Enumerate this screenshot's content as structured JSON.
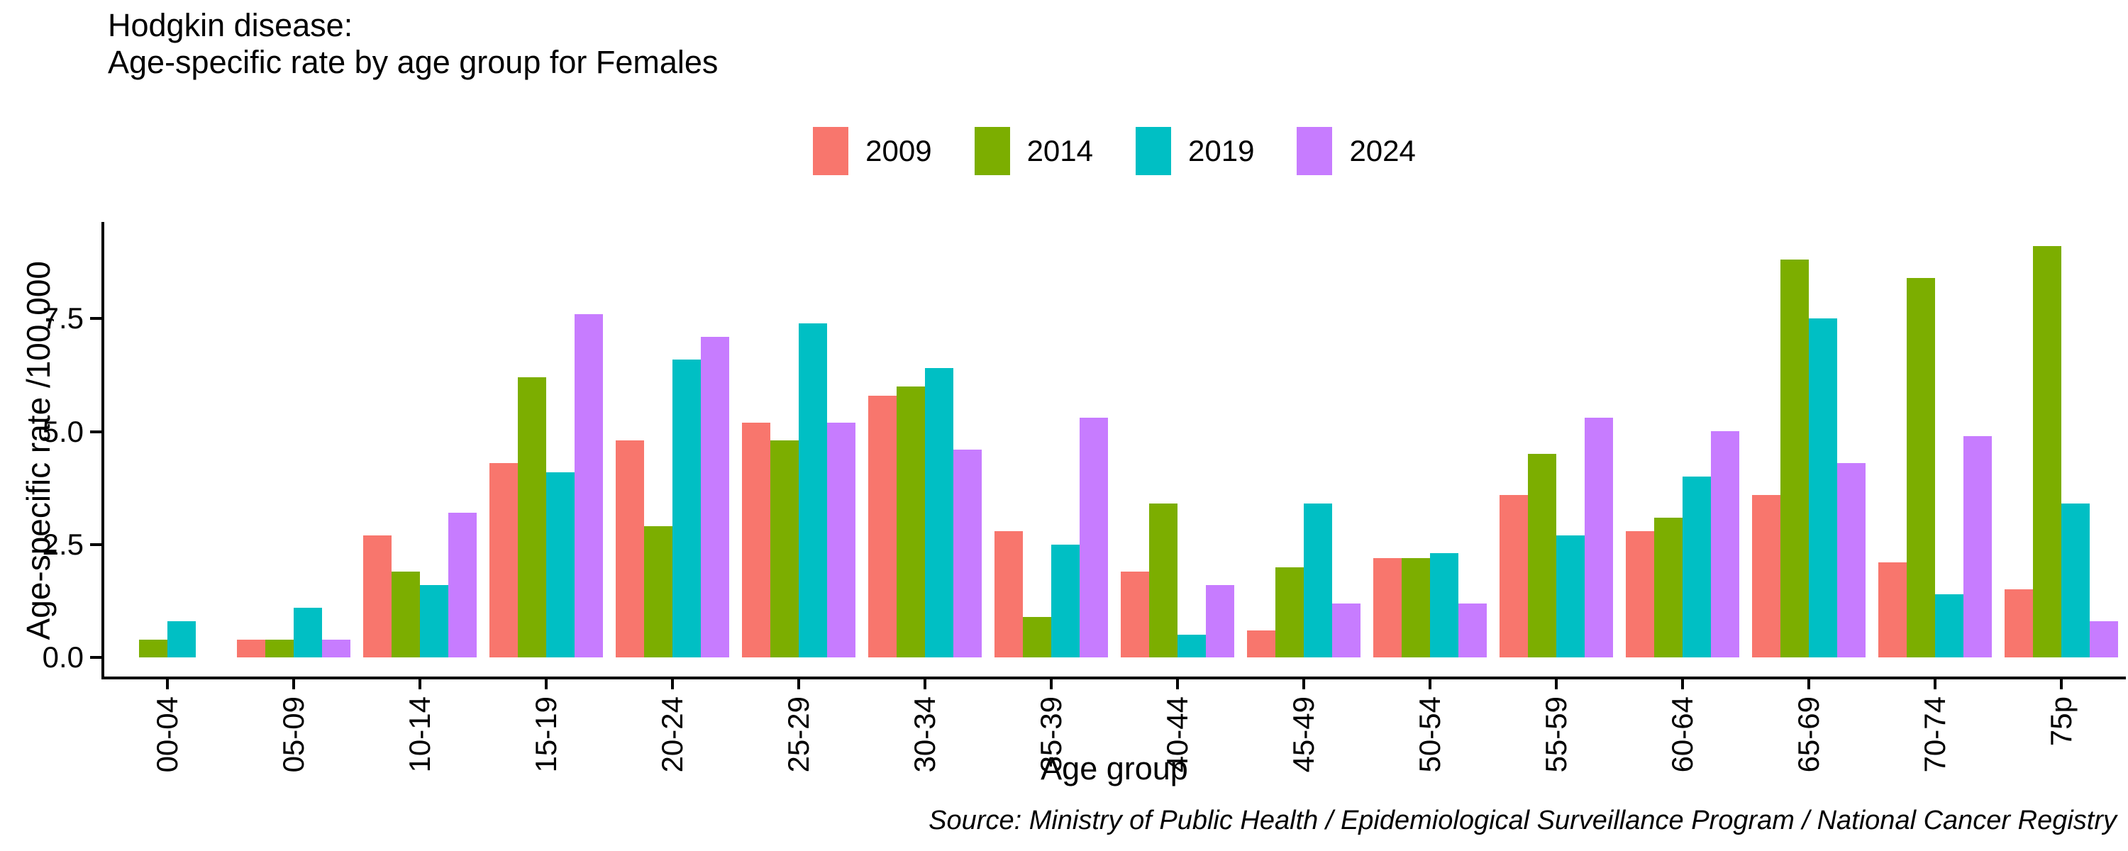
{
  "title": {
    "line1": "Hodgkin disease:",
    "line2": "Age-specific rate by age group for Females"
  },
  "source_note": "Source: Ministry of Public Health / Epidemiological Surveillance Program / National Cancer Registry",
  "axes": {
    "y_title": "Age-specific rate /100,000",
    "x_title": "Age group",
    "y_tick_labels": [
      "0.0",
      "2.5",
      "5.0",
      "7.5"
    ]
  },
  "chart_data": {
    "type": "bar",
    "title": "Hodgkin disease: Age-specific rate by age group for Females",
    "xlabel": "Age group",
    "ylabel": "Age-specific rate /100,000",
    "categories": [
      "00-04",
      "05-09",
      "10-14",
      "15-19",
      "20-24",
      "25-29",
      "30-34",
      "35-39",
      "40-44",
      "45-49",
      "50-54",
      "55-59",
      "60-64",
      "65-69",
      "70-74",
      "75p"
    ],
    "series": [
      {
        "name": "2009",
        "color": "#F8766D",
        "values": [
          0,
          0.4,
          2.7,
          4.3,
          4.8,
          5.2,
          5.8,
          2.8,
          1.9,
          0.6,
          2.2,
          3.6,
          2.8,
          3.6,
          2.1,
          1.5
        ]
      },
      {
        "name": "2014",
        "color": "#7CAE00",
        "values": [
          0.4,
          0.4,
          1.9,
          6.2,
          2.9,
          4.8,
          6.0,
          0.9,
          3.4,
          2.0,
          2.2,
          4.5,
          3.1,
          8.8,
          8.4,
          9.1
        ]
      },
      {
        "name": "2019",
        "color": "#00BFC4",
        "values": [
          0.8,
          1.1,
          1.6,
          4.1,
          6.6,
          7.4,
          6.4,
          2.5,
          0.5,
          3.4,
          2.3,
          2.7,
          4.0,
          7.5,
          1.4,
          3.4
        ]
      },
      {
        "name": "2024",
        "color": "#C77CFF",
        "values": [
          0,
          0.4,
          3.2,
          7.6,
          7.1,
          5.2,
          4.6,
          5.3,
          1.6,
          1.2,
          1.2,
          5.3,
          5.0,
          4.3,
          4.9,
          0.8
        ]
      }
    ],
    "y_tick_values": [
      0,
      2.5,
      5.0,
      7.5
    ],
    "ylim": [
      0,
      9.6
    ],
    "grid": false,
    "legend_position": "top"
  }
}
